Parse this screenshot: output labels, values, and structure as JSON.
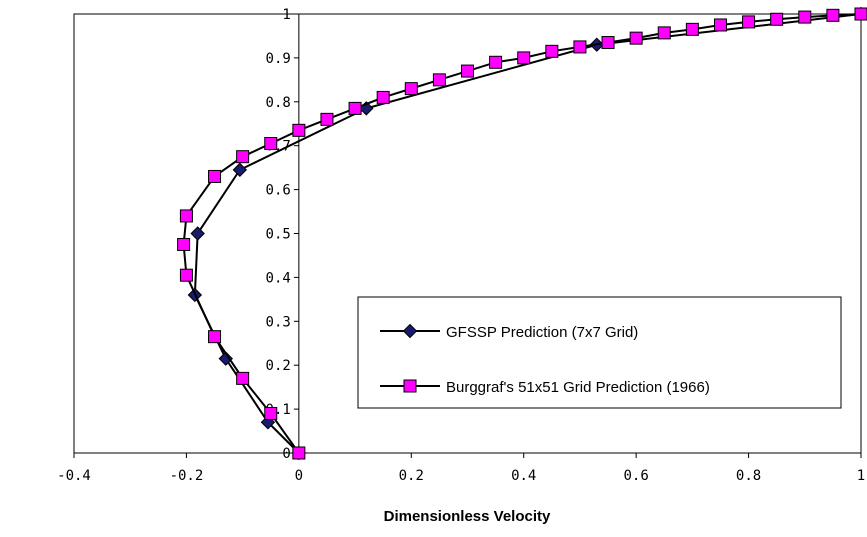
{
  "chart_data": {
    "type": "line",
    "title": "",
    "xlabel": "Dimensionless Velocity",
    "ylabel": "",
    "xlim": [
      -0.4,
      1
    ],
    "ylim": [
      0,
      1
    ],
    "x_ticks": [
      "-0.4",
      "-0.2",
      "0",
      "0.2",
      "0.4",
      "0.6",
      "0.8",
      "1"
    ],
    "y_ticks": [
      "0",
      "0.1",
      "0.2",
      "0.3",
      "0.4",
      "0.5",
      "0.6",
      "0.7",
      "0.8",
      "0.9",
      "1"
    ],
    "grid": false,
    "legend_position": "lower-right",
    "colors": {
      "gfssp": "#1a1a6e",
      "burggraf_fill": "#ff00ff",
      "burggraf_stroke": "#000000",
      "line": "#000000"
    },
    "series": [
      {
        "name": "GFSSP Prediction (7x7 Grid)",
        "marker": "diamond",
        "points": [
          [
            0,
            0
          ],
          [
            -0.055,
            0.07
          ],
          [
            -0.13,
            0.215
          ],
          [
            -0.185,
            0.36
          ],
          [
            -0.18,
            0.5
          ],
          [
            -0.105,
            0.645
          ],
          [
            0.12,
            0.785
          ],
          [
            0.53,
            0.93
          ],
          [
            1,
            1
          ]
        ]
      },
      {
        "name": "Burggraf's 51x51 Grid Prediction (1966)",
        "marker": "square",
        "points": [
          [
            0,
            0
          ],
          [
            -0.05,
            0.09
          ],
          [
            -0.1,
            0.17
          ],
          [
            -0.15,
            0.265
          ],
          [
            -0.2,
            0.405
          ],
          [
            -0.205,
            0.475
          ],
          [
            -0.2,
            0.54
          ],
          [
            -0.15,
            0.63
          ],
          [
            -0.1,
            0.675
          ],
          [
            -0.05,
            0.705
          ],
          [
            0,
            0.735
          ],
          [
            0.05,
            0.76
          ],
          [
            0.1,
            0.785
          ],
          [
            0.15,
            0.81
          ],
          [
            0.2,
            0.83
          ],
          [
            0.25,
            0.85
          ],
          [
            0.3,
            0.87
          ],
          [
            0.35,
            0.89
          ],
          [
            0.4,
            0.9
          ],
          [
            0.45,
            0.915
          ],
          [
            0.5,
            0.925
          ],
          [
            0.55,
            0.935
          ],
          [
            0.6,
            0.945
          ],
          [
            0.65,
            0.957
          ],
          [
            0.7,
            0.965
          ],
          [
            0.75,
            0.975
          ],
          [
            0.8,
            0.982
          ],
          [
            0.85,
            0.988
          ],
          [
            0.9,
            0.993
          ],
          [
            0.95,
            0.997
          ],
          [
            1,
            1
          ]
        ]
      }
    ]
  }
}
